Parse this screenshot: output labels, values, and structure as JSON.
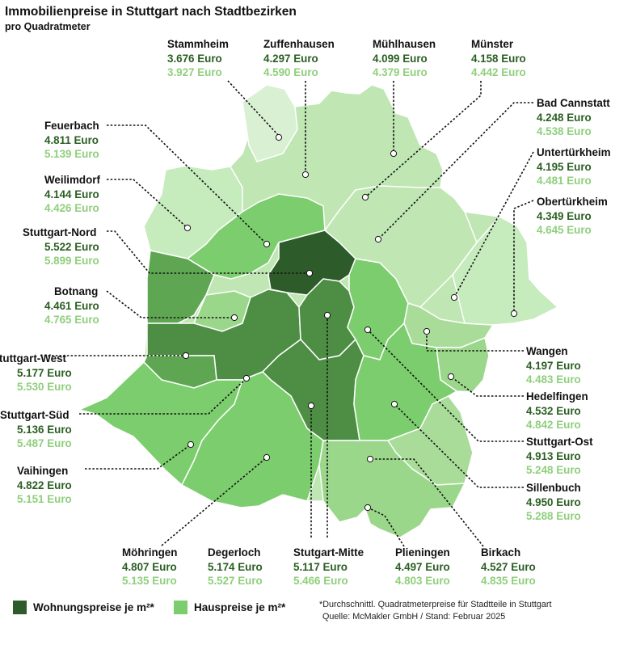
{
  "title": "Immobilienpreise in Stuttgart nach Stadtbezirken",
  "subtitle": "pro Quadratmeter",
  "colors": {
    "wohnung": "#2d5c2a",
    "haus": "#7ccd6d",
    "apartment_text": "#2a5f22",
    "house_text": "#8fcf7c"
  },
  "districts": [
    {
      "id": "stammheim",
      "name": "Stammheim",
      "apartment": "3.676 Euro",
      "house": "3.927 Euro"
    },
    {
      "id": "zuffenhausen",
      "name": "Zuffenhausen",
      "apartment": "4.297 Euro",
      "house": "4.590 Euro"
    },
    {
      "id": "muehlhausen",
      "name": "Mühlhausen",
      "apartment": "4.099 Euro",
      "house": "4.379 Euro"
    },
    {
      "id": "muenster",
      "name": "Münster",
      "apartment": "4.158 Euro",
      "house": "4.442 Euro"
    },
    {
      "id": "badcannstatt",
      "name": "Bad Cannstatt",
      "apartment": "4.248 Euro",
      "house": "4.538 Euro"
    },
    {
      "id": "untertuerkheim",
      "name": "Untertürkheim",
      "apartment": "4.195 Euro",
      "house": "4.481 Euro"
    },
    {
      "id": "obertuerkheim",
      "name": "Obertürkheim",
      "apartment": "4.349 Euro",
      "house": "4.645 Euro"
    },
    {
      "id": "feuerbach",
      "name": "Feuerbach",
      "apartment": "4.811 Euro",
      "house": "5.139 Euro"
    },
    {
      "id": "weilimdorf",
      "name": "Weilimdorf",
      "apartment": "4.144 Euro",
      "house": "4.426 Euro"
    },
    {
      "id": "stuttgartnord",
      "name": "Stuttgart-Nord",
      "apartment": "5.522 Euro",
      "house": "5.899 Euro"
    },
    {
      "id": "botnang",
      "name": "Botnang",
      "apartment": "4.461 Euro",
      "house": "4.765 Euro"
    },
    {
      "id": "stuttgartwest",
      "name": "Stuttgart-West",
      "apartment": "5.177 Euro",
      "house": "5.530 Euro"
    },
    {
      "id": "stuttgartsued",
      "name": "Stuttgart-Süd",
      "apartment": "5.136 Euro",
      "house": "5.487 Euro"
    },
    {
      "id": "vaihingen",
      "name": "Vaihingen",
      "apartment": "4.822 Euro",
      "house": "5.151 Euro"
    },
    {
      "id": "wangen",
      "name": "Wangen",
      "apartment": "4.197 Euro",
      "house": "4.483 Euro"
    },
    {
      "id": "hedelfingen",
      "name": "Hedelfingen",
      "apartment": "4.532 Euro",
      "house": "4.842 Euro"
    },
    {
      "id": "stuttgartost",
      "name": "Stuttgart-Ost",
      "apartment": "4.913 Euro",
      "house": "5.248 Euro"
    },
    {
      "id": "sillenbuch",
      "name": "Sillenbuch",
      "apartment": "4.950 Euro",
      "house": "5.288 Euro"
    },
    {
      "id": "moehringen",
      "name": "Möhringen",
      "apartment": "4.807 Euro",
      "house": "5.135 Euro"
    },
    {
      "id": "degerloch",
      "name": "Degerloch",
      "apartment": "5.174 Euro",
      "house": "5.527 Euro"
    },
    {
      "id": "stuttgartmitte",
      "name": "Stutgart-Mitte",
      "apartment": "5.117 Euro",
      "house": "5.466 Euro"
    },
    {
      "id": "plieningen",
      "name": "Plieningen",
      "apartment": "4.497 Euro",
      "house": "4.803 Euro"
    },
    {
      "id": "birkach",
      "name": "Birkach",
      "apartment": "4.527 Euro",
      "house": "4.835 Euro"
    }
  ],
  "legend": {
    "wohnung": "Wohnungspreise je m²*",
    "haus": "Hauspreise je m²*"
  },
  "footnote": {
    "line1": "*Durchschnittl. Quadratmeterpreise für Stadtteile in Stuttgart",
    "line2": "Quelle: McMakler GmbH / Stand: Februar 2025"
  }
}
